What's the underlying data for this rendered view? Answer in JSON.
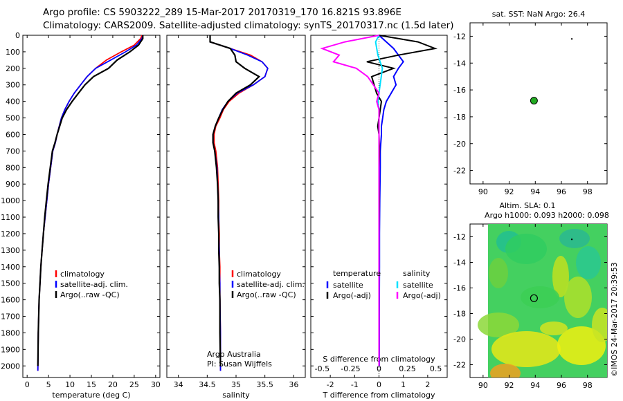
{
  "header": {
    "line1": "Argo profile: CS 5903222_289 15-Mar-2017 20170319_170 16.821S 93.896E",
    "line2": "Climatology: CARS2009. Satellite-adjusted climatology: synTS_20170317.nc (1.5d later)"
  },
  "side_stamp": "©IMOS 24-Mar-2017 20:39:53",
  "colors": {
    "climatology": "#ff0000",
    "satellite": "#0000ff",
    "argo": "#000000",
    "sat_diff": "#00e0ff",
    "argo_s_diff": "#ff00ff"
  },
  "chart_data": [
    {
      "type": "line",
      "panel": "temperature",
      "xlabel": "temperature (deg C)",
      "xlim": [
        -1,
        31
      ],
      "xticks": [
        "0",
        "5",
        "10",
        "15",
        "20",
        "25",
        "30"
      ],
      "ylim": [
        0,
        2070
      ],
      "yticks": [
        "0",
        "100",
        "200",
        "300",
        "400",
        "500",
        "600",
        "700",
        "800",
        "900",
        "1000",
        "1100",
        "1200",
        "1300",
        "1400",
        "1500",
        "1600",
        "1700",
        "1800",
        "1900",
        "2000"
      ],
      "legend": [
        "climatology",
        "satellite-adj. clim.",
        "Argo(..raw -QC)"
      ],
      "series": [
        {
          "name": "climatology",
          "color": "#ff0000",
          "x": [
            26.8,
            26.5,
            25.0,
            22.0,
            18.5,
            16.0,
            14.0,
            12.5,
            11.0,
            9.8,
            8.8,
            8.0,
            7.5,
            7.0,
            6.6,
            6.0,
            5.5,
            5.0,
            4.6,
            4.2,
            3.8,
            3.5,
            3.2,
            3.0,
            2.8,
            2.6,
            2.5
          ],
          "y": [
            0,
            20,
            60,
            100,
            150,
            200,
            250,
            300,
            350,
            400,
            450,
            500,
            550,
            600,
            650,
            700,
            800,
            900,
            1000,
            1100,
            1200,
            1300,
            1400,
            1500,
            1600,
            1800,
            2030
          ]
        },
        {
          "name": "satellite-adj. clim.",
          "color": "#0000ff",
          "x": [
            27.0,
            26.8,
            25.5,
            23.0,
            19.5,
            16.0,
            14.0,
            12.5,
            11.0,
            9.8,
            8.8,
            8.0,
            7.5,
            7.0,
            6.6,
            6.0,
            5.5,
            5.0,
            4.6,
            4.2,
            3.8,
            3.5,
            3.2,
            3.0,
            2.8,
            2.6,
            2.5
          ],
          "y": [
            0,
            20,
            60,
            100,
            150,
            200,
            250,
            300,
            350,
            400,
            450,
            500,
            550,
            600,
            650,
            700,
            800,
            900,
            1000,
            1100,
            1200,
            1300,
            1400,
            1500,
            1600,
            1800,
            2030
          ]
        },
        {
          "name": "Argo(..raw -QC)",
          "color": "#000000",
          "x": [
            27.0,
            27.0,
            26.0,
            24.0,
            21.0,
            19.0,
            15.5,
            13.5,
            12.0,
            10.5,
            9.2,
            8.2,
            7.6,
            7.0,
            6.5,
            5.9,
            5.4,
            4.9,
            4.5,
            4.1,
            3.8,
            3.5,
            3.2,
            3.0,
            2.8,
            2.6,
            2.5
          ],
          "y": [
            0,
            20,
            60,
            100,
            150,
            200,
            250,
            300,
            350,
            400,
            450,
            500,
            550,
            600,
            650,
            700,
            800,
            900,
            1000,
            1100,
            1200,
            1300,
            1400,
            1500,
            1600,
            1800,
            2000
          ]
        }
      ]
    },
    {
      "type": "line",
      "panel": "salinity",
      "xlabel": "salinity",
      "xlim": [
        33.8,
        36.2
      ],
      "xticks": [
        "34",
        "34.5",
        "35",
        "35.5",
        "36"
      ],
      "ylim": [
        0,
        2070
      ],
      "legend": [
        "climatology",
        "satellite-adj. clim.",
        "Argo(..raw -QC)"
      ],
      "annotation": [
        "Argo Australia",
        "PI: Susan Wijffels"
      ],
      "series": [
        {
          "name": "climatology",
          "color": "#ff0000",
          "x": [
            34.55,
            34.55,
            34.9,
            35.25,
            35.45,
            35.55,
            35.5,
            35.3,
            35.05,
            34.88,
            34.78,
            34.72,
            34.65,
            34.62,
            34.62,
            34.65,
            34.68,
            34.69,
            34.7,
            34.7,
            34.71,
            34.71,
            34.72,
            34.72,
            34.72,
            34.73,
            34.73
          ],
          "y": [
            0,
            40,
            80,
            120,
            160,
            200,
            250,
            300,
            350,
            400,
            450,
            500,
            550,
            600,
            650,
            700,
            800,
            900,
            1000,
            1100,
            1200,
            1300,
            1400,
            1500,
            1600,
            1800,
            2030
          ]
        },
        {
          "name": "satellite-adj. clim.",
          "color": "#0000ff",
          "x": [
            34.55,
            34.55,
            34.9,
            35.2,
            35.45,
            35.55,
            35.5,
            35.3,
            35.02,
            34.86,
            34.76,
            34.7,
            34.64,
            34.6,
            34.6,
            34.63,
            34.67,
            34.68,
            34.69,
            34.7,
            34.7,
            34.71,
            34.71,
            34.72,
            34.72,
            34.73,
            34.73
          ],
          "y": [
            0,
            40,
            80,
            120,
            160,
            200,
            250,
            300,
            350,
            400,
            450,
            500,
            550,
            600,
            650,
            700,
            800,
            900,
            1000,
            1100,
            1200,
            1300,
            1400,
            1500,
            1600,
            1800,
            2030
          ]
        },
        {
          "name": "Argo(..raw -QC)",
          "color": "#000000",
          "x": [
            34.55,
            34.55,
            34.9,
            34.98,
            35.0,
            35.15,
            35.4,
            35.25,
            35.0,
            34.86,
            34.77,
            34.7,
            34.64,
            34.6,
            34.6,
            34.63,
            34.66,
            34.68,
            34.69,
            34.69,
            34.7,
            34.7,
            34.71,
            34.71,
            34.72,
            34.72,
            34.73
          ],
          "y": [
            0,
            40,
            80,
            120,
            160,
            200,
            250,
            300,
            350,
            400,
            450,
            500,
            550,
            600,
            650,
            700,
            800,
            900,
            1000,
            1100,
            1200,
            1300,
            1400,
            1500,
            1600,
            1800,
            2000
          ]
        }
      ]
    },
    {
      "type": "line",
      "panel": "difference",
      "xlabel": "T difference from climatology",
      "xlabel_top": "S difference from climatology",
      "xlim": [
        -2.8,
        2.8
      ],
      "xticks_bottom": [
        "-2",
        "-1",
        "0",
        "1",
        "2"
      ],
      "xticks_top": [
        "-0.5",
        "-0.25",
        "0",
        "0.25",
        "0.5"
      ],
      "legend_left_title": "temperature",
      "legend_right_title": "salinity",
      "legend": [
        "satellite",
        "Argo(-adj)",
        "satellite",
        "Argo(-adj)"
      ],
      "series": [
        {
          "name": "satellite",
          "group": "temperature",
          "color": "#0000ff",
          "x": [
            0,
            0.3,
            0.6,
            0.8,
            1.0,
            0.8,
            0.6,
            0.7,
            0.5,
            0.3,
            0.2,
            0.15,
            0.1,
            0.1,
            0.05,
            0.05,
            0.03,
            0.02,
            0.02,
            0.01,
            0.01
          ],
          "y": [
            0,
            40,
            80,
            120,
            160,
            200,
            250,
            300,
            350,
            400,
            450,
            500,
            550,
            600,
            700,
            800,
            1000,
            1200,
            1400,
            1700,
            2000
          ]
        },
        {
          "name": "Argo(-adj)",
          "group": "temperature",
          "color": "#000000",
          "x": [
            0,
            1.6,
            2.3,
            0.8,
            -0.5,
            0.6,
            -0.3,
            -0.2,
            -0.1,
            0.1,
            0.05,
            0.0,
            -0.05,
            0.0,
            0.02,
            0.0,
            0.01,
            0.0,
            0.0,
            0.0,
            0.0
          ],
          "y": [
            0,
            40,
            80,
            120,
            160,
            200,
            250,
            300,
            350,
            400,
            450,
            500,
            550,
            600,
            700,
            800,
            1000,
            1200,
            1400,
            1700,
            2000
          ]
        },
        {
          "name": "satellite",
          "group": "salinity",
          "color": "#00e0ff",
          "x": [
            0,
            -0.03,
            -0.02,
            -0.01,
            0.01,
            0.03,
            0.02,
            0.01,
            0.0,
            -0.01,
            0.0,
            0.0,
            0.0,
            0.0,
            0.0,
            0.0,
            0.0,
            0.0,
            0.0,
            0.0,
            0.0
          ],
          "y": [
            0,
            40,
            80,
            120,
            160,
            200,
            250,
            300,
            350,
            400,
            450,
            500,
            550,
            600,
            700,
            800,
            1000,
            1200,
            1400,
            1700,
            2000
          ]
        },
        {
          "name": "Argo(-adj)",
          "group": "salinity",
          "color": "#ff00ff",
          "x": [
            0,
            -0.3,
            -0.5,
            -0.35,
            -0.4,
            -0.2,
            -0.1,
            -0.05,
            0.0,
            -0.02,
            0.0,
            0.0,
            0.0,
            0.0,
            0.0,
            0.0,
            0.0,
            0.0,
            0.0,
            0.0,
            0.0
          ],
          "y": [
            0,
            40,
            80,
            120,
            160,
            200,
            250,
            300,
            350,
            400,
            450,
            500,
            550,
            600,
            700,
            800,
            1000,
            1200,
            1400,
            1700,
            2000
          ]
        }
      ]
    },
    {
      "type": "scatter",
      "panel": "sst_map",
      "title": "sat. SST: NaN Argo: 26.4",
      "xlim": [
        89,
        99.5
      ],
      "ylim": [
        -23,
        -11
      ],
      "xticks": [
        "90",
        "92",
        "94",
        "96",
        "98"
      ],
      "yticks": [
        "-12",
        "-14",
        "-16",
        "-18",
        "-20",
        "-22"
      ],
      "points": [
        {
          "x": 93.9,
          "y": -16.8,
          "marker": "green circle"
        },
        {
          "x": 96.8,
          "y": -12.2,
          "marker": "dot"
        }
      ]
    },
    {
      "type": "heatmap",
      "panel": "sla_map",
      "title": "Altim. SLA: 0.1",
      "subtitle": "Argo h1000: 0.093 h2000: 0.098",
      "xlim": [
        89,
        99.5
      ],
      "ylim": [
        -23,
        -11
      ],
      "xticks": [
        "90",
        "92",
        "94",
        "96",
        "98"
      ],
      "yticks": [
        "-12",
        "-14",
        "-16",
        "-18",
        "-20",
        "-22"
      ],
      "points": [
        {
          "x": 93.9,
          "y": -16.8,
          "marker": "open circle"
        },
        {
          "x": 96.8,
          "y": -12.2,
          "marker": "dot"
        }
      ]
    }
  ]
}
